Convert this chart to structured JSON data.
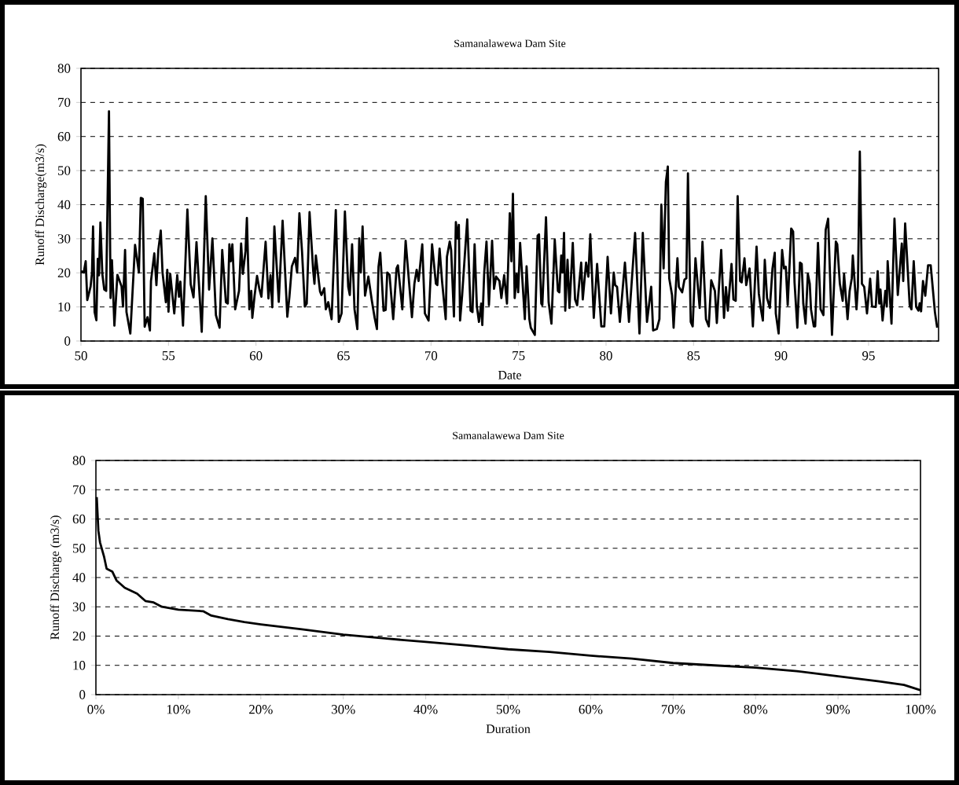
{
  "chart_data": [
    {
      "type": "line",
      "title": "Samanalawewa  Dam Site",
      "xlabel": "Date",
      "ylabel": "Runoff Discharge(m3/s)",
      "color": "#000000",
      "grid": "y",
      "xlim": [
        50,
        99
      ],
      "ylim": [
        0,
        80
      ],
      "xticks": [
        50,
        55,
        60,
        65,
        70,
        75,
        80,
        85,
        90,
        95
      ],
      "yticks": [
        0,
        10,
        20,
        30,
        40,
        50,
        60,
        70,
        80
      ],
      "x": [
        50.0,
        50.16,
        50.27,
        50.36,
        50.55,
        50.63,
        50.69,
        50.78,
        50.88,
        50.96,
        51.03,
        51.11,
        51.22,
        51.33,
        51.44,
        51.6,
        51.69,
        51.77,
        51.91,
        52.08,
        52.32,
        52.4,
        52.52,
        52.6,
        52.82,
        53.03,
        53.09,
        53.31,
        53.42,
        53.53,
        53.64,
        53.8,
        53.94,
        54.0,
        54.19,
        54.31,
        54.42,
        54.56,
        54.66,
        54.85,
        54.93,
        55.0,
        55.1,
        55.33,
        55.5,
        55.6,
        55.68,
        55.83,
        56.08,
        56.27,
        56.43,
        56.6,
        56.9,
        57.13,
        57.32,
        57.51,
        57.71,
        57.92,
        58.07,
        58.28,
        58.39,
        58.48,
        58.56,
        58.65,
        58.81,
        59.03,
        59.15,
        59.25,
        59.4,
        59.48,
        59.62,
        59.73,
        59.79,
        59.92,
        60.06,
        60.2,
        60.31,
        60.55,
        60.71,
        60.83,
        60.93,
        61.05,
        61.3,
        61.52,
        61.79,
        61.91,
        62.05,
        62.23,
        62.35,
        62.48,
        62.63,
        62.79,
        62.9,
        63.06,
        63.27,
        63.34,
        63.42,
        63.66,
        63.74,
        63.9,
        63.99,
        64.13,
        64.32,
        64.56,
        64.73,
        64.89,
        65.08,
        65.27,
        65.36,
        65.49,
        65.63,
        65.79,
        65.9,
        65.99,
        66.09,
        66.23,
        66.42,
        66.62,
        66.78,
        66.91,
        67.0,
        67.1,
        67.29,
        67.41,
        67.5,
        67.63,
        67.84,
        68.03,
        68.11,
        68.36,
        68.55,
        68.91,
        69.05,
        69.18,
        69.29,
        69.5,
        69.65,
        69.86,
        70.06,
        70.28,
        70.36,
        70.49,
        70.63,
        70.84,
        70.91,
        71.07,
        71.15,
        71.31,
        71.42,
        71.51,
        71.59,
        71.66,
        71.78,
        72.07,
        72.26,
        72.37,
        72.49,
        72.62,
        72.74,
        72.87,
        72.93,
        73.04,
        73.17,
        73.31,
        73.49,
        73.6,
        73.72,
        73.91,
        74.02,
        74.18,
        74.34,
        74.5,
        74.59,
        74.68,
        74.78,
        74.89,
        74.98,
        75.09,
        75.36,
        75.46,
        75.62,
        75.7,
        75.93,
        76.09,
        76.17,
        76.3,
        76.36,
        76.57,
        76.72,
        76.88,
        77.07,
        77.25,
        77.33,
        77.44,
        77.52,
        77.6,
        77.67,
        77.8,
        77.91,
        78.1,
        78.23,
        78.35,
        78.58,
        78.67,
        78.86,
        78.99,
        79.1,
        79.3,
        79.49,
        79.73,
        79.9,
        80.09,
        80.28,
        80.44,
        80.52,
        80.63,
        80.79,
        81.08,
        81.31,
        81.66,
        81.91,
        82.1,
        82.34,
        82.58,
        82.69,
        82.9,
        83.05,
        83.16,
        83.29,
        83.42,
        83.53,
        83.61,
        83.77,
        83.86,
        84.08,
        84.16,
        84.35,
        84.48,
        84.59,
        84.68,
        84.84,
        84.95,
        85.11,
        85.35,
        85.51,
        85.71,
        85.87,
        86.01,
        86.22,
        86.33,
        86.58,
        86.74,
        86.85,
        86.96,
        87.17,
        87.28,
        87.41,
        87.52,
        87.66,
        87.75,
        87.91,
        88.01,
        88.2,
        88.39,
        88.6,
        88.73,
        88.85,
        88.96,
        89.07,
        89.2,
        89.36,
        89.51,
        89.64,
        89.7,
        89.86,
        90.06,
        90.17,
        90.27,
        90.38,
        90.58,
        90.69,
        90.77,
        90.93,
        91.08,
        91.18,
        91.27,
        91.4,
        91.53,
        91.64,
        91.71,
        91.87,
        91.95,
        92.11,
        92.26,
        92.42,
        92.55,
        92.69,
        92.91,
        93.13,
        93.21,
        93.36,
        93.52,
        93.6,
        93.8,
        93.92,
        94.04,
        94.1,
        94.31,
        94.39,
        94.5,
        94.62,
        94.75,
        94.91,
        95.09,
        95.2,
        95.41,
        95.52,
        95.61,
        95.68,
        95.8,
        95.96,
        96.04,
        96.09,
        96.31,
        96.48,
        96.67,
        96.9,
        96.98,
        97.09,
        97.35,
        97.45,
        97.58,
        97.72,
        97.85,
        97.92,
        98.0,
        98.11,
        98.24,
        98.4,
        98.55,
        98.79,
        98.92
      ],
      "values": [
        20.5,
        20.1,
        23.4,
        12.0,
        16,
        20,
        33.6,
        8.5,
        6.1,
        24.1,
        19.3,
        34.8,
        19.7,
        15.1,
        14.7,
        67.4,
        12.6,
        23.7,
        4.5,
        19.4,
        16,
        10.1,
        26.7,
        8.5,
        2.2,
        22.4,
        28.2,
        20.1,
        42,
        41.7,
        4.2,
        7.0,
        3.1,
        17.6,
        25.7,
        16.4,
        26.7,
        32.4,
        20.1,
        11.4,
        20.9,
        8.6,
        19.7,
        8.1,
        19.3,
        13.0,
        17.4,
        4.5,
        38.6,
        16.6,
        12.8,
        29.0,
        2.7,
        42.5,
        15.1,
        30.1,
        7.6,
        3.9,
        26.7,
        11.4,
        11.0,
        28.4,
        23.4,
        28.4,
        9.3,
        14.7,
        28.6,
        19.7,
        26.3,
        36.1,
        9.3,
        14.7,
        6.8,
        13.3,
        19.1,
        15.1,
        13.0,
        29.1,
        12.5,
        19.3,
        9.9,
        33.6,
        11.5,
        35.3,
        7.1,
        13.0,
        21.9,
        24.4,
        20.1,
        37.5,
        26.3,
        10.1,
        11.0,
        37.8,
        20.5,
        16.8,
        25.1,
        14.5,
        13.5,
        15.5,
        9.3,
        11.4,
        6.4,
        38.4,
        5.6,
        8.1,
        38.0,
        15.9,
        13.5,
        28.4,
        9.3,
        3.5,
        30.1,
        20.1,
        33.6,
        13.3,
        18.9,
        11.8,
        6.8,
        3.5,
        21.8,
        25.9,
        8.9,
        9.1,
        20.1,
        19.4,
        6.4,
        21.3,
        22.2,
        9.3,
        29.4,
        7.0,
        16.8,
        20.9,
        17.6,
        28.4,
        8.1,
        6.0,
        28.4,
        16.8,
        16.4,
        27.1,
        17.6,
        6.4,
        24.7,
        29.2,
        26.7,
        7.2,
        34.9,
        30.1,
        34.1,
        6.0,
        13.5,
        35.7,
        8.9,
        8.5,
        28.4,
        10.1,
        5.6,
        11.0,
        4.7,
        20.1,
        29.2,
        10.5,
        29.4,
        15.3,
        18.9,
        17.6,
        12.6,
        19.3,
        11.0,
        37.5,
        23.4,
        43.2,
        12.6,
        19.7,
        14.3,
        28.8,
        6.4,
        21.9,
        6.4,
        3.9,
        1.8,
        30.9,
        31.3,
        11.0,
        10.5,
        36.3,
        11.4,
        5.1,
        29.7,
        14.7,
        14.3,
        25.1,
        20.1,
        31.7,
        8.9,
        23.8,
        9.7,
        28.8,
        12.2,
        10.5,
        23.0,
        12.2,
        23.0,
        18.9,
        31.3,
        6.8,
        22.6,
        4.3,
        4.3,
        24.7,
        8.1,
        20.1,
        16.4,
        15.9,
        5.6,
        23.0,
        5.6,
        31.7,
        2.2,
        31.7,
        5.6,
        15.9,
        3.1,
        3.5,
        6.4,
        40.0,
        21.3,
        46.7,
        51.2,
        18.4,
        13.5,
        3.9,
        24.3,
        15.9,
        14.3,
        18.0,
        18.4,
        49.2,
        5.6,
        4.3,
        24.3,
        9.7,
        29.1,
        6.4,
        4.3,
        17.8,
        14.7,
        5.3,
        26.7,
        6.8,
        15.8,
        8.9,
        22.6,
        12.2,
        11.8,
        42.5,
        17.6,
        17.2,
        24.3,
        16.4,
        21.3,
        4.3,
        27.7,
        13.9,
        9.3,
        6.0,
        23.8,
        12.6,
        9.7,
        21.3,
        25.9,
        8.1,
        2.2,
        26.7,
        21.3,
        21.8,
        10.5,
        33.0,
        32.1,
        17.2,
        3.9,
        23.0,
        22.6,
        11.0,
        5.1,
        19.7,
        16.8,
        9.3,
        4.3,
        4.3,
        28.8,
        9.3,
        7.6,
        32.6,
        35.9,
        1.8,
        29.2,
        28.4,
        16.8,
        11.8,
        19.7,
        6.4,
        14.7,
        18.4,
        25.1,
        9.3,
        15.9,
        55.6,
        16.8,
        15.9,
        8.1,
        18.3,
        10.1,
        10.0,
        20.5,
        11.0,
        15.1,
        6.0,
        14.7,
        10.1,
        23.4,
        5.1,
        35.9,
        13.5,
        28.6,
        17.6,
        34.5,
        10.5,
        9.3,
        23.4,
        10.0,
        8.9,
        11.1,
        8.7,
        17.6,
        13.3,
        22.2,
        22.2,
        8.5,
        3.9
      ]
    },
    {
      "type": "line",
      "title": "Samanalawewa  Dam Site",
      "xlabel": "Duration",
      "ylabel": "Runoff Discharge (m3/s)",
      "color": "#000000",
      "grid": "y",
      "xlim": [
        0,
        100
      ],
      "ylim": [
        0,
        80
      ],
      "xticks": [
        {
          "value": 0,
          "label": "0%"
        },
        {
          "value": 10,
          "label": "10%"
        },
        {
          "value": 20,
          "label": "20%"
        },
        {
          "value": 30,
          "label": "30%"
        },
        {
          "value": 40,
          "label": "40%"
        },
        {
          "value": 50,
          "label": "50%"
        },
        {
          "value": 60,
          "label": "60%"
        },
        {
          "value": 70,
          "label": "70%"
        },
        {
          "value": 80,
          "label": "80%"
        },
        {
          "value": 90,
          "label": "90%"
        },
        {
          "value": 100,
          "label": "100%"
        }
      ],
      "yticks": [
        0,
        10,
        20,
        30,
        40,
        50,
        60,
        70,
        80
      ],
      "x": [
        0.1,
        0.3,
        0.5,
        1.0,
        1.3,
        2.0,
        2.5,
        3.5,
        5,
        6,
        7,
        8,
        10,
        13,
        14,
        16,
        18,
        20,
        25,
        30,
        35,
        40,
        45,
        50,
        55,
        60,
        65,
        70,
        75,
        80,
        85,
        90,
        95,
        98,
        100
      ],
      "values": [
        67.5,
        56,
        52,
        47,
        43,
        42,
        39,
        36.5,
        34.5,
        32,
        31.5,
        30,
        29,
        28.5,
        27,
        25.8,
        24.8,
        24,
        22.3,
        20.5,
        19.2,
        18,
        16.8,
        15.5,
        14.6,
        13.3,
        12.3,
        10.8,
        10,
        9.2,
        8,
        6.3,
        4.5,
        3.3,
        1.5
      ]
    }
  ]
}
